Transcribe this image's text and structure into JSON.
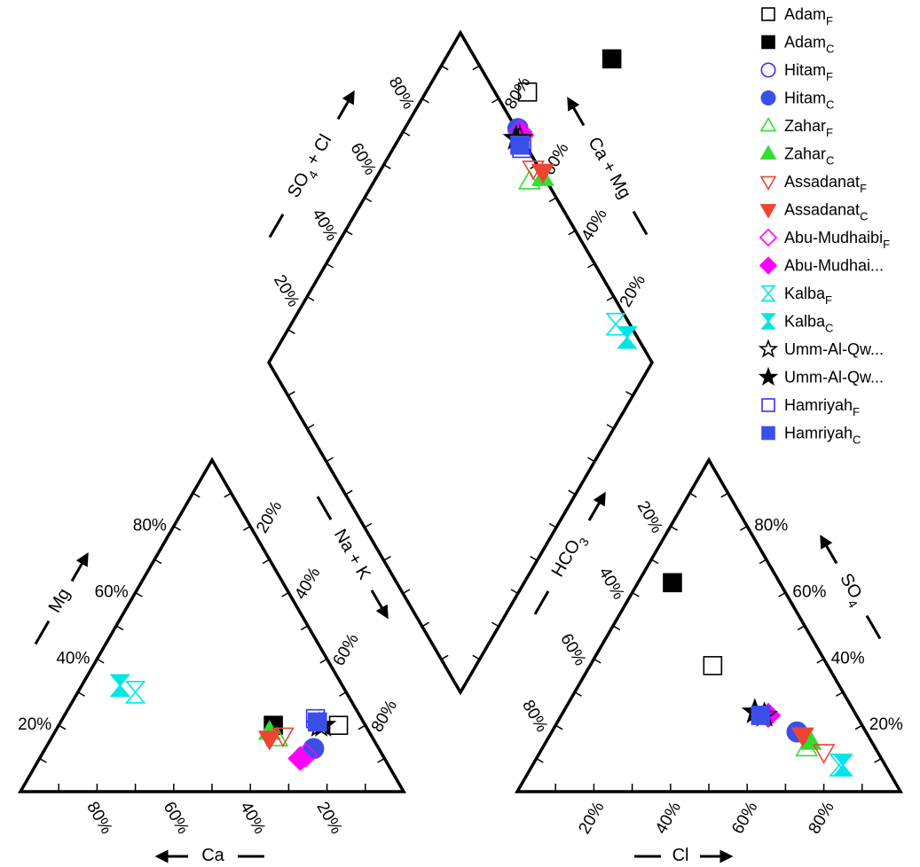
{
  "chart_data": {
    "type": "scatter",
    "subtype": "piper-diagram",
    "title": "",
    "axes": {
      "cation_ca": {
        "label": "Ca",
        "arrow": "left",
        "ticks": [
          "80%",
          "60%",
          "40%",
          "20%"
        ]
      },
      "cation_mg": {
        "label": "Mg",
        "ticks": [
          "20%",
          "40%",
          "60%",
          "80%"
        ]
      },
      "cation_nak": {
        "label": "Na + K",
        "ticks": [
          "20%",
          "40%",
          "60%",
          "80%"
        ]
      },
      "anion_cl": {
        "label": "Cl",
        "arrow": "right",
        "ticks": [
          "20%",
          "40%",
          "60%",
          "80%"
        ]
      },
      "anion_so4": {
        "label": "SO",
        "sub": "4",
        "ticks": [
          "20%",
          "40%",
          "60%",
          "80%"
        ]
      },
      "anion_hco3": {
        "label": "HCO",
        "sub": "3",
        "ticks": [
          "20%",
          "40%",
          "60%",
          "80%"
        ]
      },
      "diamond_so4cl": {
        "label": "SO",
        "sub": "4",
        "tail": " + Cl",
        "ticks": [
          "20%",
          "40%",
          "60%",
          "80%"
        ]
      },
      "diamond_camg": {
        "label": "Ca + Mg",
        "ticks": [
          "20%",
          "40%",
          "60%",
          "80%"
        ]
      }
    },
    "legend": {
      "position": "top-right"
    },
    "series": [
      {
        "name": "Adam",
        "sub": "F",
        "marker": "square",
        "filled": false,
        "color": "#000000",
        "ca": 7,
        "mg": 20,
        "cl": 70,
        "so4": 38
      },
      {
        "name": "Adam",
        "sub": "C",
        "marker": "square",
        "filled": true,
        "color": "#000000",
        "ca": 24,
        "mg": 20,
        "cl": 72,
        "so4": 63
      },
      {
        "name": "Hitam",
        "sub": "F",
        "marker": "circle",
        "filled": false,
        "color": "#3333ff",
        "ca": 17,
        "mg": 13,
        "cl": 82,
        "so4": 18
      },
      {
        "name": "Hitam",
        "sub": "C",
        "marker": "circle",
        "filled": true,
        "color": "#3a4fe8",
        "ca": 17,
        "mg": 13,
        "cl": 82,
        "so4": 18
      },
      {
        "name": "Zahar",
        "sub": "F",
        "marker": "triangle-up",
        "filled": false,
        "color": "#33dd33",
        "ca": 25,
        "mg": 16,
        "cl": 82,
        "so4": 13
      },
      {
        "name": "Zahar",
        "sub": "C",
        "marker": "triangle-up",
        "filled": true,
        "color": "#33dd33",
        "ca": 26,
        "mg": 18,
        "cl": 84,
        "so4": 15
      },
      {
        "name": "Assadanat",
        "sub": "F",
        "marker": "triangle-down",
        "filled": false,
        "color": "#ee4433",
        "ca": 23,
        "mg": 17,
        "cl": 86,
        "so4": 12
      },
      {
        "name": "Assadanat",
        "sub": "C",
        "marker": "triangle-down",
        "filled": true,
        "color": "#ee4433",
        "ca": 27,
        "mg": 16,
        "cl": 83,
        "so4": 17
      },
      {
        "name": "Abu-Mudhaibi",
        "sub": "F",
        "marker": "diamond",
        "filled": false,
        "color": "#ff00ff",
        "ca": 20,
        "mg": 11,
        "cl": 77,
        "so4": 23
      },
      {
        "name": "Abu-Mudhai...",
        "sub": "",
        "marker": "diamond",
        "filled": true,
        "color": "#ff00ff",
        "ca": 22,
        "mg": 10,
        "cl": 77,
        "so4": 23
      },
      {
        "name": "Kalba",
        "sub": "F",
        "marker": "hourglass",
        "filled": false,
        "color": "#00e5e5",
        "ca": 55,
        "mg": 30,
        "cl": 88,
        "so4": 8
      },
      {
        "name": "Kalba",
        "sub": "C",
        "marker": "hourglass",
        "filled": true,
        "color": "#00e5e5",
        "ca": 58,
        "mg": 32,
        "cl": 89,
        "so4": 8
      },
      {
        "name": "Umm-Al-Qw...",
        "sub": "",
        "marker": "star",
        "filled": false,
        "color": "#000000",
        "ca": 12,
        "mg": 20,
        "cl": 76,
        "so4": 23
      },
      {
        "name": "Umm-Al-Qw...",
        "sub": "",
        "marker": "star",
        "filled": true,
        "color": "#000000",
        "ca": 11,
        "mg": 20,
        "cl": 74,
        "so4": 24
      },
      {
        "name": "Hamriyah",
        "sub": "F",
        "marker": "square",
        "filled": false,
        "color": "#3333ff",
        "ca": 12,
        "mg": 22,
        "cl": 75,
        "so4": 23
      },
      {
        "name": "Hamriyah",
        "sub": "C",
        "marker": "square",
        "filled": true,
        "color": "#3a4fe8",
        "ca": 12,
        "mg": 21,
        "cl": 75,
        "so4": 23
      }
    ]
  }
}
